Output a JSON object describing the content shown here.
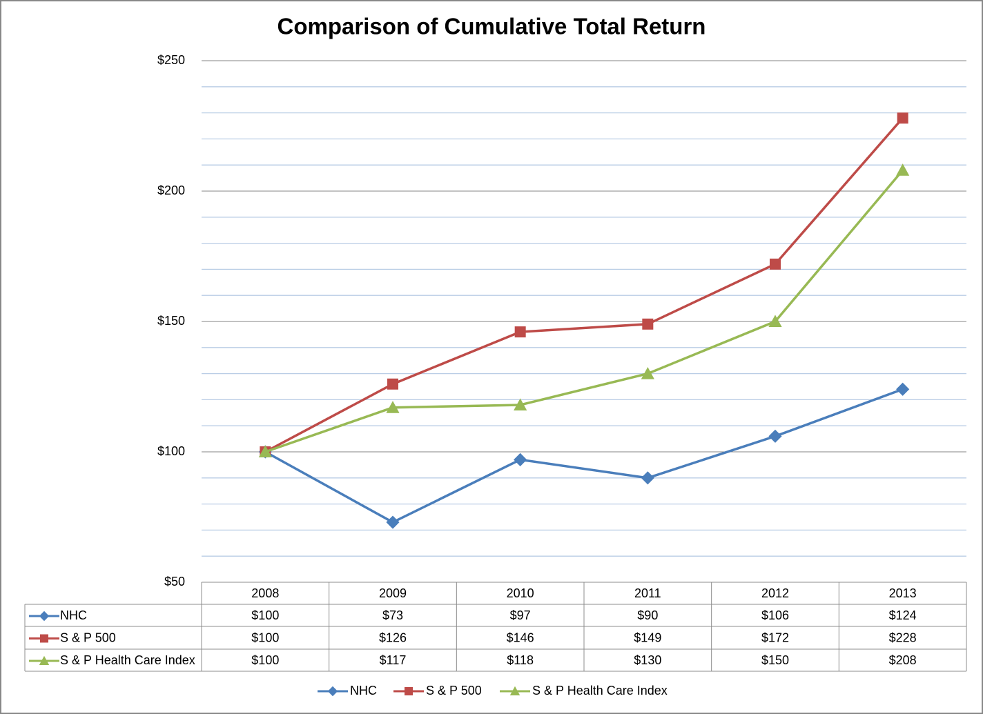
{
  "chart_data": {
    "type": "line",
    "title": "Comparison of Cumulative Total Return",
    "categories": [
      "2008",
      "2009",
      "2010",
      "2011",
      "2012",
      "2013"
    ],
    "series": [
      {
        "name": "NHC",
        "color": "#4a7ebb",
        "marker": "diamond",
        "values": [
          100,
          73,
          97,
          90,
          106,
          124
        ],
        "value_labels": [
          "$100",
          "$73",
          "$97",
          "$90",
          "$106",
          "$124"
        ]
      },
      {
        "name": "S & P 500",
        "color": "#be4b48",
        "marker": "square",
        "values": [
          100,
          126,
          146,
          149,
          172,
          228
        ],
        "value_labels": [
          "$100",
          "$126",
          "$146",
          "$149",
          "$172",
          "$228"
        ]
      },
      {
        "name": "S & P Health Care Index",
        "color": "#98b954",
        "marker": "triangle",
        "values": [
          100,
          117,
          118,
          130,
          150,
          208
        ],
        "value_labels": [
          "$100",
          "$117",
          "$118",
          "$130",
          "$150",
          "$208"
        ]
      }
    ],
    "ylim": [
      50,
      250
    ],
    "yticks": [
      {
        "value": 50,
        "label": "$50"
      },
      {
        "value": 100,
        "label": "$100"
      },
      {
        "value": 150,
        "label": "$150"
      },
      {
        "value": 200,
        "label": "$200"
      },
      {
        "value": 250,
        "label": "$250"
      }
    ],
    "grid": true,
    "minor_grid": true,
    "legend": "bottom",
    "data_table": true
  }
}
